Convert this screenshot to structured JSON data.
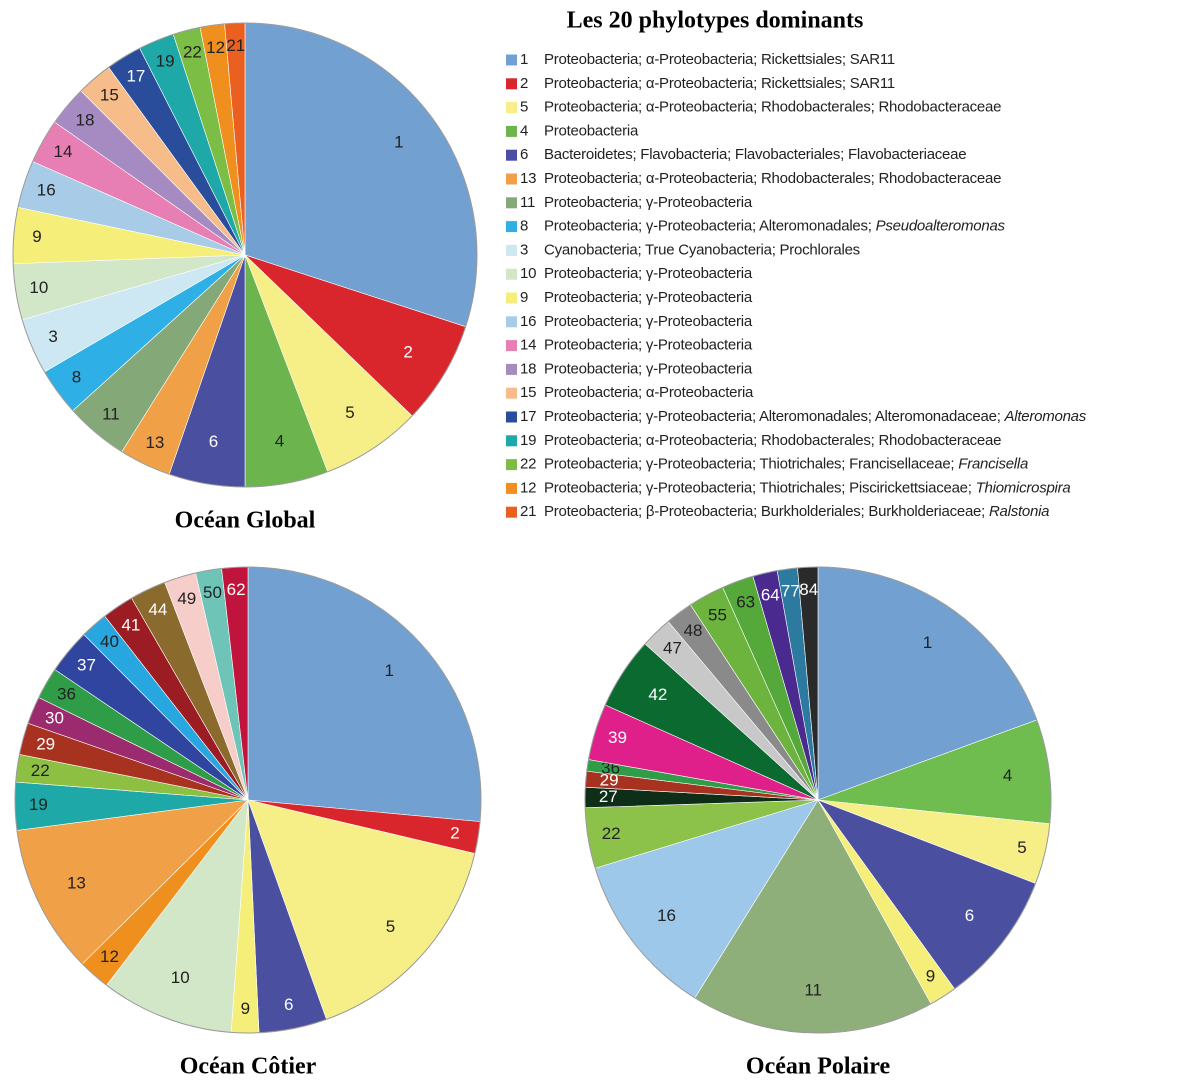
{
  "chart_data": [
    {
      "type": "pie",
      "title": "Océan Global",
      "categories": [
        "1",
        "2",
        "5",
        "4",
        "6",
        "13",
        "11",
        "8",
        "3",
        "10",
        "9",
        "16",
        "14",
        "18",
        "15",
        "17",
        "19",
        "22",
        "12",
        "21"
      ],
      "values": [
        30,
        7.2,
        7,
        5.8,
        5.3,
        3.6,
        4.4,
        3.3,
        3.9,
        3.9,
        3.9,
        3.3,
        3.1,
        2.8,
        2.5,
        2.5,
        2.5,
        1.9,
        1.7,
        1.4
      ],
      "colors": [
        "#72a0d0",
        "#d9252c",
        "#f6ee86",
        "#6cb54e",
        "#4a4fa0",
        "#f0a046",
        "#84a878",
        "#2eb0e6",
        "#cde8f2",
        "#d2e6c8",
        "#f5ee78",
        "#a8cce8",
        "#e77fb4",
        "#a58bc2",
        "#f6bd8a",
        "#2a4d9b",
        "#1fa8a8",
        "#7cbd45",
        "#ef8f1e",
        "#ea6020"
      ]
    },
    {
      "type": "pie",
      "title": "Océan Côtier",
      "categories": [
        "1",
        "2",
        "5",
        "6",
        "9",
        "10",
        "12",
        "13",
        "19",
        "22",
        "29",
        "30",
        "36",
        "37",
        "40",
        "41",
        "44",
        "49",
        "50",
        "62"
      ],
      "values": [
        26.4,
        2.2,
        15.8,
        4.7,
        1.9,
        9.2,
        2.2,
        10.3,
        3.3,
        1.9,
        2.2,
        1.9,
        2.2,
        3.1,
        1.9,
        2.2,
        2.5,
        2.2,
        1.8,
        1.8
      ],
      "colors": [
        "#72a0d0",
        "#d9252c",
        "#f6ee86",
        "#4a4fa0",
        "#f5ee78",
        "#d2e6c8",
        "#ef8f1e",
        "#f0a046",
        "#1fa8a8",
        "#8dbf43",
        "#a83220",
        "#9b2a6e",
        "#2f9c48",
        "#2f45a0",
        "#27a6e0",
        "#9c1c24",
        "#8b6a2d",
        "#f6cdc8",
        "#6fc4b8",
        "#c0143c"
      ]
    },
    {
      "type": "pie",
      "title": "Océan Polaire",
      "categories": [
        "1",
        "4",
        "5",
        "6",
        "9",
        "11",
        "16",
        "22",
        "27",
        "29",
        "36",
        "39",
        "42",
        "47",
        "48",
        "55",
        "63",
        "64",
        "77",
        "84"
      ],
      "values": [
        19.4,
        7.2,
        4.2,
        9.2,
        1.9,
        16.9,
        11.4,
        4.2,
        1.4,
        1.1,
        0.8,
        3.9,
        5,
        2.2,
        1.9,
        2.5,
        2.2,
        1.7,
        1.4,
        1.4
      ],
      "colors": [
        "#72a0d0",
        "#6ebd4e",
        "#f6ee86",
        "#4a4fa0",
        "#f5ee78",
        "#8eae7a",
        "#9ec8ea",
        "#8cc14a",
        "#0e2e18",
        "#a83220",
        "#2f9c48",
        "#e0208a",
        "#0b6a30",
        "#c8c8c8",
        "#8a8a8a",
        "#6cb43e",
        "#55a83a",
        "#4b2a8f",
        "#2c7aa0",
        "#2a2a2a"
      ]
    }
  ],
  "legend": {
    "title": "Les 20 phylotypes dominants",
    "entries": [
      {
        "text": "Proteobacteria; α-Proteobacteria; Rickettsiales; SAR11"
      },
      {
        "text": "Proteobacteria; α-Proteobacteria; Rickettsiales; SAR11"
      },
      {
        "text": "Proteobacteria; α-Proteobacteria; Rhodobacterales; Rhodobacteraceae"
      },
      {
        "text": "Proteobacteria"
      },
      {
        "text": "Bacteroidetes; Flavobacteria; Flavobacteriales; Flavobacteriaceae"
      },
      {
        "text": "Proteobacteria; α-Proteobacteria; Rhodobacterales; Rhodobacteraceae"
      },
      {
        "text": "Proteobacteria; γ-Proteobacteria"
      },
      {
        "text": "Proteobacteria; γ-Proteobacteria; Alteromonadales;",
        "italic": "Pseudoalteromonas"
      },
      {
        "text": "Cyanobacteria; True Cyanobacteria; Prochlorales"
      },
      {
        "text": "Proteobacteria; γ-Proteobacteria"
      },
      {
        "text": "Proteobacteria; γ-Proteobacteria"
      },
      {
        "text": "Proteobacteria; γ-Proteobacteria"
      },
      {
        "text": "Proteobacteria; γ-Proteobacteria"
      },
      {
        "text": "Proteobacteria; γ-Proteobacteria"
      },
      {
        "text": "Proteobacteria; α-Proteobacteria"
      },
      {
        "text": "Proteobacteria; γ-Proteobacteria; Alteromonadales; Alteromonadaceae;",
        "italic": "Alteromonas"
      },
      {
        "text": "Proteobacteria; α-Proteobacteria; Rhodobacterales; Rhodobacteraceae"
      },
      {
        "text": "Proteobacteria; γ-Proteobacteria; Thiotrichales; Francisellaceae;",
        "italic": "Francisella"
      },
      {
        "text": "Proteobacteria; γ-Proteobacteria; Thiotrichales; Piscirickettsiaceae;",
        "italic": "Thiomicrospira"
      },
      {
        "text": "Proteobacteria; β-Proteobacteria; Burkholderiales; Burkholderiaceae;",
        "italic": "Ralstonia"
      }
    ]
  }
}
